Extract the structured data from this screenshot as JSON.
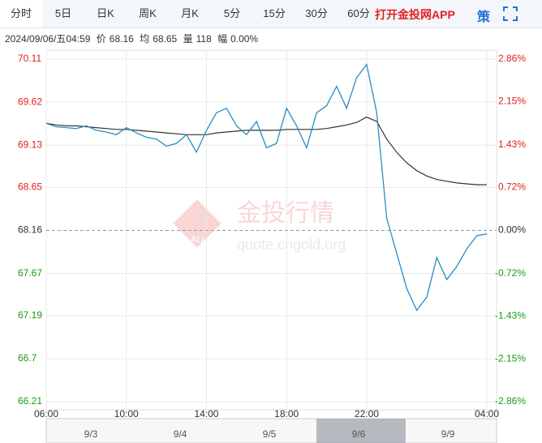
{
  "tabs": [
    "分时",
    "5日",
    "日K",
    "周K",
    "月K",
    "5分",
    "15分",
    "30分",
    "60分"
  ],
  "app_link": "打开金投网APP",
  "strategy": "策",
  "info": {
    "date": "2024/09/06/五04:59",
    "price_label": "价",
    "price": "68.16",
    "avg_label": "均",
    "avg": "68.65",
    "vol_label": "量",
    "vol": "118",
    "chg_label": "幅",
    "chg": "0.00%"
  },
  "watermark": {
    "logo": "AU",
    "name": "金投行情",
    "url": "quote.cngold.org"
  },
  "navigator": [
    "9/3",
    "9/4",
    "9/5",
    "9/6",
    "9/9"
  ],
  "chart_data": {
    "type": "line",
    "x": [
      "06:00",
      null,
      null,
      null,
      null,
      null,
      null,
      null,
      "10:00",
      null,
      null,
      null,
      null,
      null,
      null,
      null,
      "14:00",
      null,
      null,
      null,
      null,
      null,
      null,
      null,
      "18:00",
      null,
      null,
      null,
      null,
      null,
      null,
      null,
      "22:00",
      null,
      null,
      null,
      null,
      null,
      null,
      null,
      null,
      null,
      null,
      null,
      "04:00"
    ],
    "series": [
      {
        "name": "价",
        "color": "#2a8cc4",
        "values": [
          69.38,
          69.34,
          69.33,
          69.32,
          69.35,
          69.3,
          69.28,
          69.25,
          69.33,
          69.27,
          69.22,
          69.2,
          69.12,
          69.15,
          69.25,
          69.05,
          69.3,
          69.5,
          69.55,
          69.35,
          69.25,
          69.4,
          69.1,
          69.15,
          69.55,
          69.35,
          69.1,
          69.5,
          69.58,
          69.8,
          69.55,
          69.9,
          70.05,
          69.5,
          68.3,
          67.9,
          67.5,
          67.25,
          67.4,
          67.85,
          67.6,
          67.75,
          67.95,
          68.1,
          68.12
        ]
      },
      {
        "name": "均",
        "color": "#333333",
        "values": [
          69.38,
          69.36,
          69.35,
          69.35,
          69.34,
          69.33,
          69.32,
          69.31,
          69.31,
          69.3,
          69.29,
          69.28,
          69.27,
          69.26,
          69.25,
          69.25,
          69.25,
          69.27,
          69.28,
          69.29,
          69.3,
          69.3,
          69.3,
          69.3,
          69.31,
          69.31,
          69.31,
          69.31,
          69.32,
          69.34,
          69.36,
          69.39,
          69.45,
          69.4,
          69.2,
          69.05,
          68.93,
          68.84,
          68.78,
          68.74,
          68.72,
          68.7,
          68.69,
          68.68,
          68.68
        ]
      }
    ],
    "reference_line": 68.16,
    "ylim": [
      66.21,
      70.11
    ],
    "yticks": [
      66.21,
      66.7,
      67.19,
      67.67,
      68.16,
      68.65,
      69.13,
      69.62,
      70.11
    ],
    "y2lim": [
      -2.86,
      2.86
    ],
    "y2ticks": [
      {
        "value": -2.86,
        "label": "-2.86%"
      },
      {
        "value": -2.15,
        "label": "-2.15%"
      },
      {
        "value": -1.43,
        "label": "-1.43%"
      },
      {
        "value": -0.72,
        "label": "-0.72%"
      },
      {
        "value": 0,
        "label": "0.00%"
      },
      {
        "value": 0.72,
        "label": "0.72%"
      },
      {
        "value": 1.43,
        "label": "1.43%"
      },
      {
        "value": 2.15,
        "label": "2.15%"
      },
      {
        "value": 2.86,
        "label": "2.86%"
      }
    ],
    "up_color": "#e02020",
    "down_color": "#1a9a1a",
    "flat_color": "#333333",
    "grid": true
  }
}
